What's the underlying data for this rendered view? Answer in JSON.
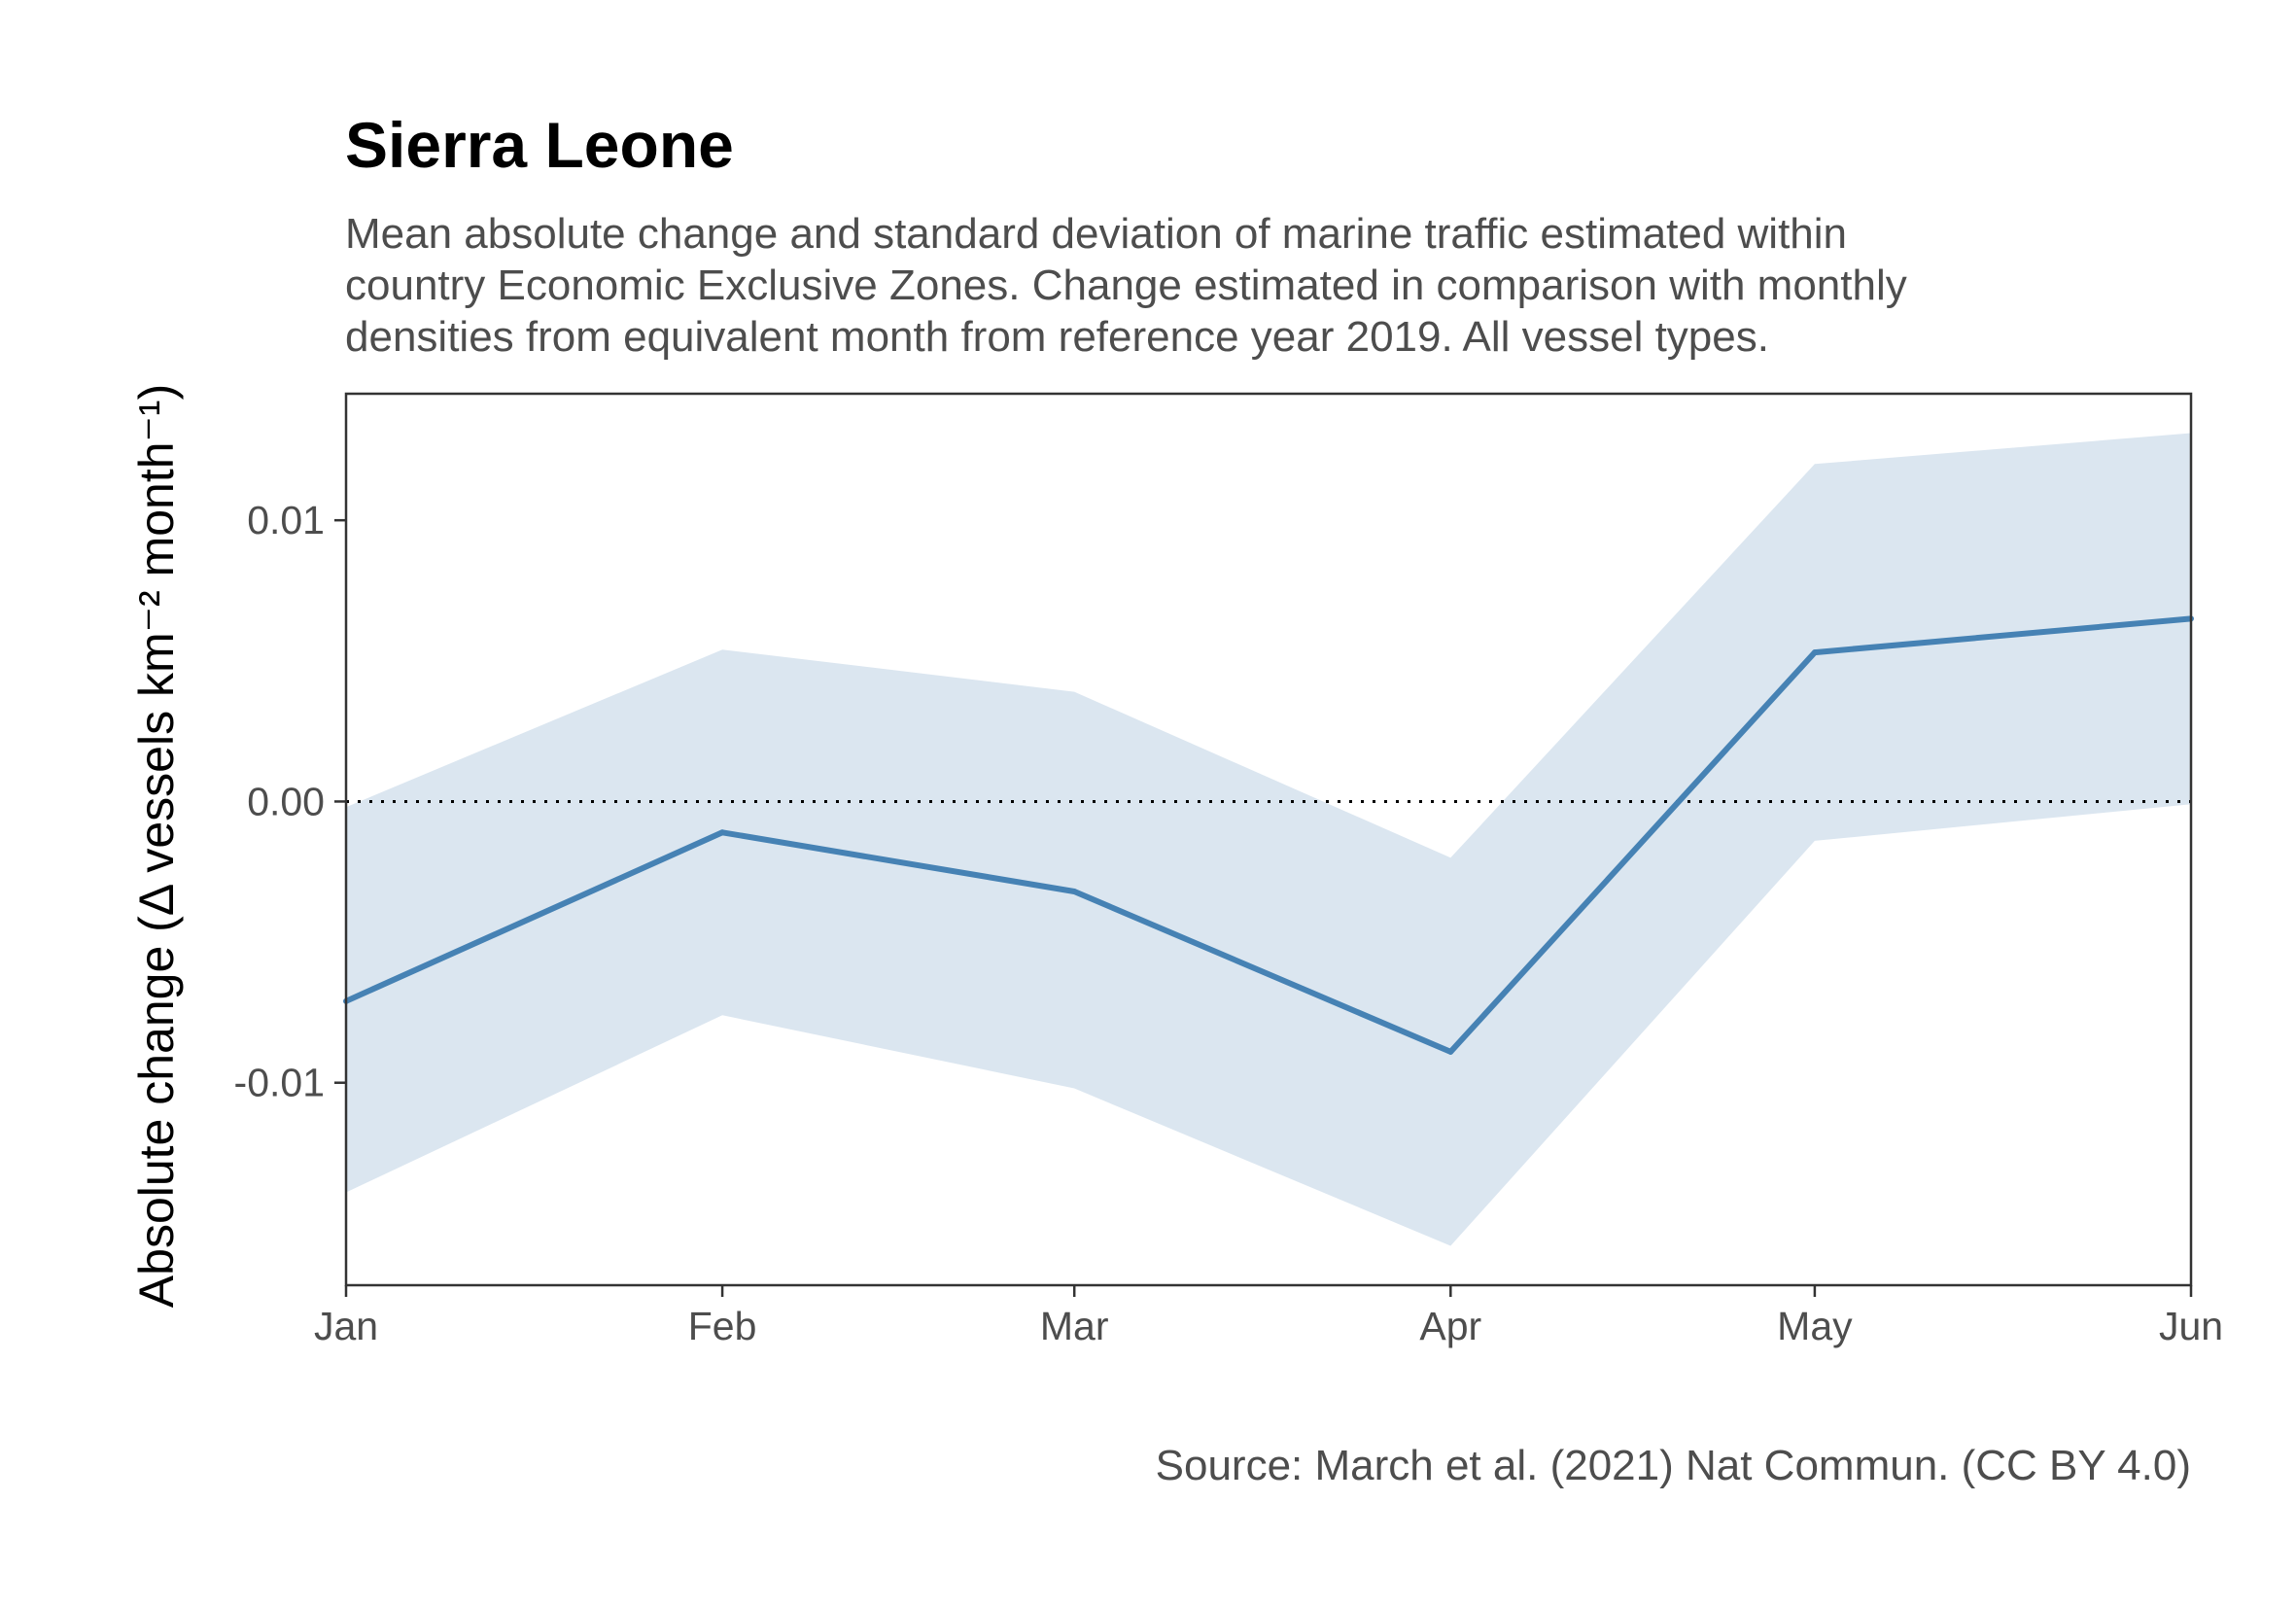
{
  "chart_data": {
    "type": "area",
    "title": "Sierra Leone",
    "subtitle": [
      "Mean absolute change and standard deviation of marine traffic estimated within",
      "country Economic Exclusive Zones. Change estimated in comparison with monthly",
      "densities from equivalent month from reference year 2019. All vessel types."
    ],
    "ylabel": "Absolute change (Δ vessels km⁻² month⁻¹)",
    "caption": "Source: March et al. (2021) Nat Commun. (CC BY 4.0)",
    "categories": [
      "Jan",
      "Feb",
      "Mar",
      "Apr",
      "May",
      "Jun"
    ],
    "x_days": [
      0,
      31,
      60,
      91,
      121,
      152
    ],
    "series": [
      {
        "values": [
          -0.0071,
          -0.0011,
          -0.0032,
          -0.0089,
          0.0053,
          0.0065
        ],
        "lower": [
          -0.0139,
          -0.0076,
          -0.0102,
          -0.0158,
          -0.0014,
          -0.0001
        ],
        "upper": [
          -0.0002,
          0.0054,
          0.0039,
          -0.002,
          0.012,
          0.0131
        ]
      }
    ],
    "yticks": [
      -0.01,
      0.0,
      0.01
    ],
    "ytick_labels": [
      "-0.01",
      "0.00",
      "0.01"
    ],
    "ylim": [
      -0.0172,
      0.0145
    ],
    "reference_line": 0,
    "grid": false,
    "colors": {
      "line": "#4682b4",
      "ribbon": "#dbe6f0",
      "reference": "#000000",
      "frame": "#333333"
    }
  }
}
